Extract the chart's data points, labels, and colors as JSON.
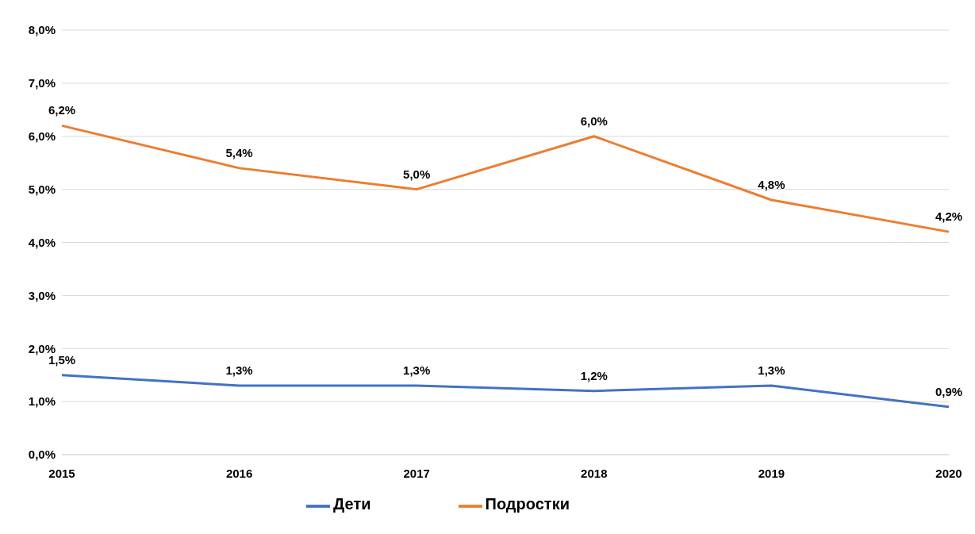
{
  "chart_data": {
    "type": "line",
    "categories": [
      "2015",
      "2016",
      "2017",
      "2018",
      "2019",
      "2020"
    ],
    "series": [
      {
        "name": "Дети",
        "color": "#4472c4",
        "values": [
          1.5,
          1.3,
          1.3,
          1.2,
          1.3,
          0.9
        ],
        "value_labels": [
          "1,5%",
          "1,3%",
          "1,3%",
          "1,2%",
          "1,3%",
          "0,9%"
        ]
      },
      {
        "name": "Подростки",
        "color": "#ed7d31",
        "values": [
          6.2,
          5.4,
          5.0,
          6.0,
          4.8,
          4.2
        ],
        "value_labels": [
          "6,2%",
          "5,4%",
          "5,0%",
          "6,0%",
          "4,8%",
          "4,2%"
        ]
      }
    ],
    "ylim": [
      0,
      8
    ],
    "yticks": [
      {
        "value": 0,
        "label": "0,0%"
      },
      {
        "value": 1,
        "label": "1,0%"
      },
      {
        "value": 2,
        "label": "2,0%"
      },
      {
        "value": 3,
        "label": "3,0%"
      },
      {
        "value": 4,
        "label": "4,0%"
      },
      {
        "value": 5,
        "label": "5,0%"
      },
      {
        "value": 6,
        "label": "6,0%"
      },
      {
        "value": 7,
        "label": "7,0%"
      },
      {
        "value": 8,
        "label": "8,0%"
      }
    ],
    "grid": "y",
    "legend": "bottom",
    "marker": "none"
  }
}
